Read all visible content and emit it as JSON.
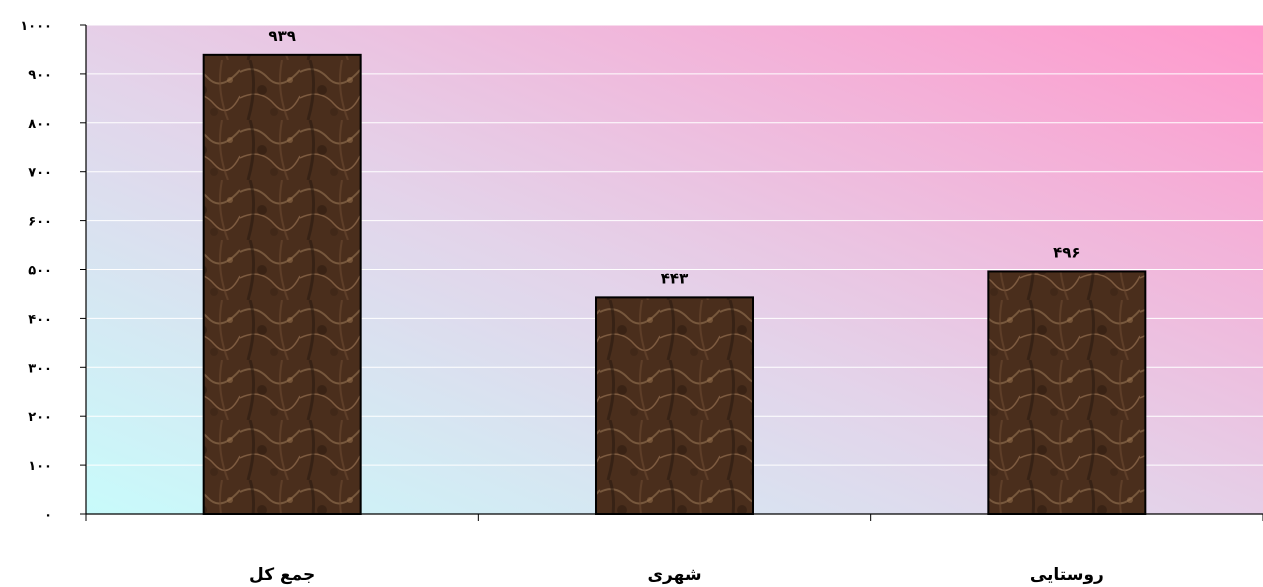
{
  "chart_data": {
    "type": "bar",
    "categories": [
      "جمع کل",
      "شهری",
      "روستايی"
    ],
    "values": [
      939,
      443,
      496
    ],
    "data_labels": [
      "۹۳۹",
      "۴۴۳",
      "۴۹۶"
    ],
    "ylim": [
      0,
      1000
    ],
    "yticks": [
      0,
      100,
      200,
      300,
      400,
      500,
      600,
      700,
      800,
      900,
      1000
    ],
    "ytick_labels": [
      "۰",
      "۱۰۰",
      "۲۰۰",
      "۳۰۰",
      "۴۰۰",
      "۵۰۰",
      "۶۰۰",
      "۷۰۰",
      "۸۰۰",
      "۹۰۰",
      "۱۰۰۰"
    ],
    "grid": true,
    "legend": false,
    "colors": {
      "bar_fill": "#4a2e1c",
      "bar_highlight": "#8a6a4c",
      "bar_outline": "#000000",
      "plot_gradient_start": "#c8fbfb",
      "plot_gradient_end": "#ff99cc",
      "gridline": "#ffffff",
      "axis": "#000000"
    }
  }
}
